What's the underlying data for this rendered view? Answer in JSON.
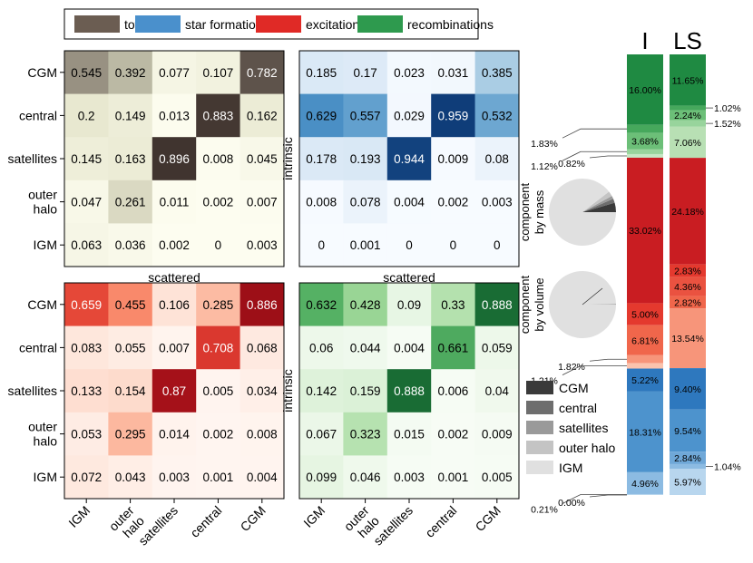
{
  "legend": [
    {
      "label": "total",
      "color": "#6b5d52"
    },
    {
      "label": "star formation",
      "color": "#4a90cc"
    },
    {
      "label": "excitations",
      "color": "#e02a26"
    },
    {
      "label": "recombinations",
      "color": "#2e9a4e"
    }
  ],
  "row_labels": [
    "CGM",
    "central",
    "satellites",
    "outer halo",
    "IGM"
  ],
  "col_labels": [
    "IGM",
    "outer halo",
    "satellites",
    "central",
    "CGM"
  ],
  "axis_scattered": "scattered",
  "axis_intrinsic": "intrinsic",
  "pie_labels": {
    "mass": [
      "component",
      "by mass"
    ],
    "volume": [
      "component",
      "by volume"
    ]
  },
  "bar_titles": [
    "I",
    "LS"
  ],
  "component_legend": [
    {
      "label": "CGM",
      "color": "#3a3a3a"
    },
    {
      "label": "central",
      "color": "#6e6e6e"
    },
    {
      "label": "satellites",
      "color": "#9a9a9a"
    },
    {
      "label": "outer halo",
      "color": "#c4c4c4"
    },
    {
      "label": "IGM",
      "color": "#e0e0e0"
    }
  ],
  "chart_data": [
    {
      "type": "heatmap",
      "panel": "total",
      "colormap": "total",
      "rows": [
        "CGM",
        "central",
        "satellites",
        "outer halo",
        "IGM"
      ],
      "cols": [
        "IGM",
        "outer halo",
        "satellites",
        "central",
        "CGM"
      ],
      "values": [
        [
          "0.545",
          "0.392",
          "0.077",
          "0.107",
          "0.782"
        ],
        [
          "0.2",
          "0.149",
          "0.013",
          "0.883",
          "0.162"
        ],
        [
          "0.145",
          "0.163",
          "0.896",
          "0.008",
          "0.045"
        ],
        [
          "0.047",
          "0.261",
          "0.011",
          "0.002",
          "0.007"
        ],
        [
          "0.063",
          "0.036",
          "0.002",
          "0",
          "0.003"
        ]
      ]
    },
    {
      "type": "heatmap",
      "panel": "star formation",
      "colormap": "star",
      "rows": [
        "CGM",
        "central",
        "satellites",
        "outer halo",
        "IGM"
      ],
      "cols": [
        "IGM",
        "outer halo",
        "satellites",
        "central",
        "CGM"
      ],
      "values": [
        [
          "0.185",
          "0.17",
          "0.023",
          "0.031",
          "0.385"
        ],
        [
          "0.629",
          "0.557",
          "0.029",
          "0.959",
          "0.532"
        ],
        [
          "0.178",
          "0.193",
          "0.944",
          "0.009",
          "0.08"
        ],
        [
          "0.008",
          "0.078",
          "0.004",
          "0.002",
          "0.003"
        ],
        [
          "0",
          "0.001",
          "0",
          "0",
          "0"
        ]
      ]
    },
    {
      "type": "heatmap",
      "panel": "excitations",
      "colormap": "exc",
      "rows": [
        "CGM",
        "central",
        "satellites",
        "outer halo",
        "IGM"
      ],
      "cols": [
        "IGM",
        "outer halo",
        "satellites",
        "central",
        "CGM"
      ],
      "values": [
        [
          "0.659",
          "0.455",
          "0.106",
          "0.285",
          "0.886"
        ],
        [
          "0.083",
          "0.055",
          "0.007",
          "0.708",
          "0.068"
        ],
        [
          "0.133",
          "0.154",
          "0.87",
          "0.005",
          "0.034"
        ],
        [
          "0.053",
          "0.295",
          "0.014",
          "0.002",
          "0.008"
        ],
        [
          "0.072",
          "0.043",
          "0.003",
          "0.001",
          "0.004"
        ]
      ]
    },
    {
      "type": "heatmap",
      "panel": "recombinations",
      "colormap": "rec",
      "rows": [
        "CGM",
        "central",
        "satellites",
        "outer halo",
        "IGM"
      ],
      "cols": [
        "IGM",
        "outer halo",
        "satellites",
        "central",
        "CGM"
      ],
      "values": [
        [
          "0.632",
          "0.428",
          "0.09",
          "0.33",
          "0.888"
        ],
        [
          "0.06",
          "0.044",
          "0.004",
          "0.661",
          "0.059"
        ],
        [
          "0.142",
          "0.159",
          "0.888",
          "0.006",
          "0.04"
        ],
        [
          "0.067",
          "0.323",
          "0.015",
          "0.002",
          "0.009"
        ],
        [
          "0.099",
          "0.046",
          "0.003",
          "0.001",
          "0.005"
        ]
      ]
    },
    {
      "type": "pie",
      "name": "component by mass",
      "values": [
        0.045,
        0.02,
        0.015,
        0.025,
        0.895
      ],
      "labels": [
        "CGM",
        "central",
        "satellites",
        "outer halo",
        "IGM"
      ]
    },
    {
      "type": "pie",
      "name": "component by volume",
      "values": [
        0.001,
        0.0005,
        0.0005,
        0.002,
        0.996
      ],
      "labels": [
        "CGM",
        "central",
        "satellites",
        "outer halo",
        "IGM"
      ]
    },
    {
      "type": "bar",
      "stacked": true,
      "orientation": "vertical",
      "name": "I",
      "segments": [
        {
          "value": 16.0,
          "label": "16.00%",
          "color": "#1f8a42"
        },
        {
          "value": 1.83,
          "label": "1.83%",
          "color": "#46a85c",
          "callout": "left"
        },
        {
          "value": 3.68,
          "label": "3.68%",
          "color": "#6cbf78"
        },
        {
          "value": 1.12,
          "label": "1.12%",
          "color": "#98d49c",
          "callout": "left"
        },
        {
          "value": 0.82,
          "label": "0.82%",
          "color": "#c6e8c4",
          "callout": "left"
        },
        {
          "value": 33.02,
          "label": "33.02%",
          "color": "#c91d22"
        },
        {
          "value": 5.0,
          "label": "5.00%",
          "color": "#e4392e"
        },
        {
          "value": 6.81,
          "label": "6.81%",
          "color": "#f0664b"
        },
        {
          "value": 1.82,
          "label": "1.82%",
          "color": "#f7957a",
          "callout": "left"
        },
        {
          "value": 1.21,
          "label": "1.21%",
          "color": "#fbc3ad",
          "callout": "left"
        },
        {
          "value": 5.22,
          "label": "5.22%",
          "color": "#2e78be"
        },
        {
          "value": 18.31,
          "label": "18.31%",
          "color": "#4d93cd"
        },
        {
          "value": 4.96,
          "label": "4.96%",
          "color": "#8cbbe2"
        },
        {
          "value": 0.21,
          "label": "0.21%",
          "color": "#b8d6ee",
          "callout": "left"
        },
        {
          "value": 0.0,
          "label": "0.00%",
          "color": "#dbeaf6",
          "callout": "left"
        }
      ]
    },
    {
      "type": "bar",
      "stacked": true,
      "orientation": "vertical",
      "name": "LS",
      "segments": [
        {
          "value": 11.65,
          "label": "11.65%",
          "color": "#1f8a42"
        },
        {
          "value": 1.02,
          "label": "1.02%",
          "color": "#46a85c",
          "callout": "right"
        },
        {
          "value": 2.24,
          "label": "2.24%",
          "color": "#6cbf78"
        },
        {
          "value": 1.52,
          "label": "1.52%",
          "color": "#98d49c",
          "callout": "right"
        },
        {
          "value": 7.06,
          "label": "7.06%",
          "color": "#b8e0b4"
        },
        {
          "value": 24.18,
          "label": "24.18%",
          "color": "#c91d22"
        },
        {
          "value": 2.83,
          "label": "2.83%",
          "color": "#e4392e"
        },
        {
          "value": 4.36,
          "label": "4.36%",
          "color": "#ea5240"
        },
        {
          "value": 2.82,
          "label": "2.82%",
          "color": "#f0664b"
        },
        {
          "value": 13.54,
          "label": "13.54%",
          "color": "#f7957a"
        },
        {
          "value": 9.4,
          "label": "9.40%",
          "color": "#2e78be"
        },
        {
          "value": 9.54,
          "label": "9.54%",
          "color": "#4d93cd"
        },
        {
          "value": 2.84,
          "label": "2.84%",
          "color": "#6fa8d8"
        },
        {
          "value": 1.04,
          "label": "1.04%",
          "color": "#8cbbe2",
          "callout": "right"
        },
        {
          "value": 5.97,
          "label": "5.97%",
          "color": "#b8d6ee"
        }
      ]
    }
  ]
}
